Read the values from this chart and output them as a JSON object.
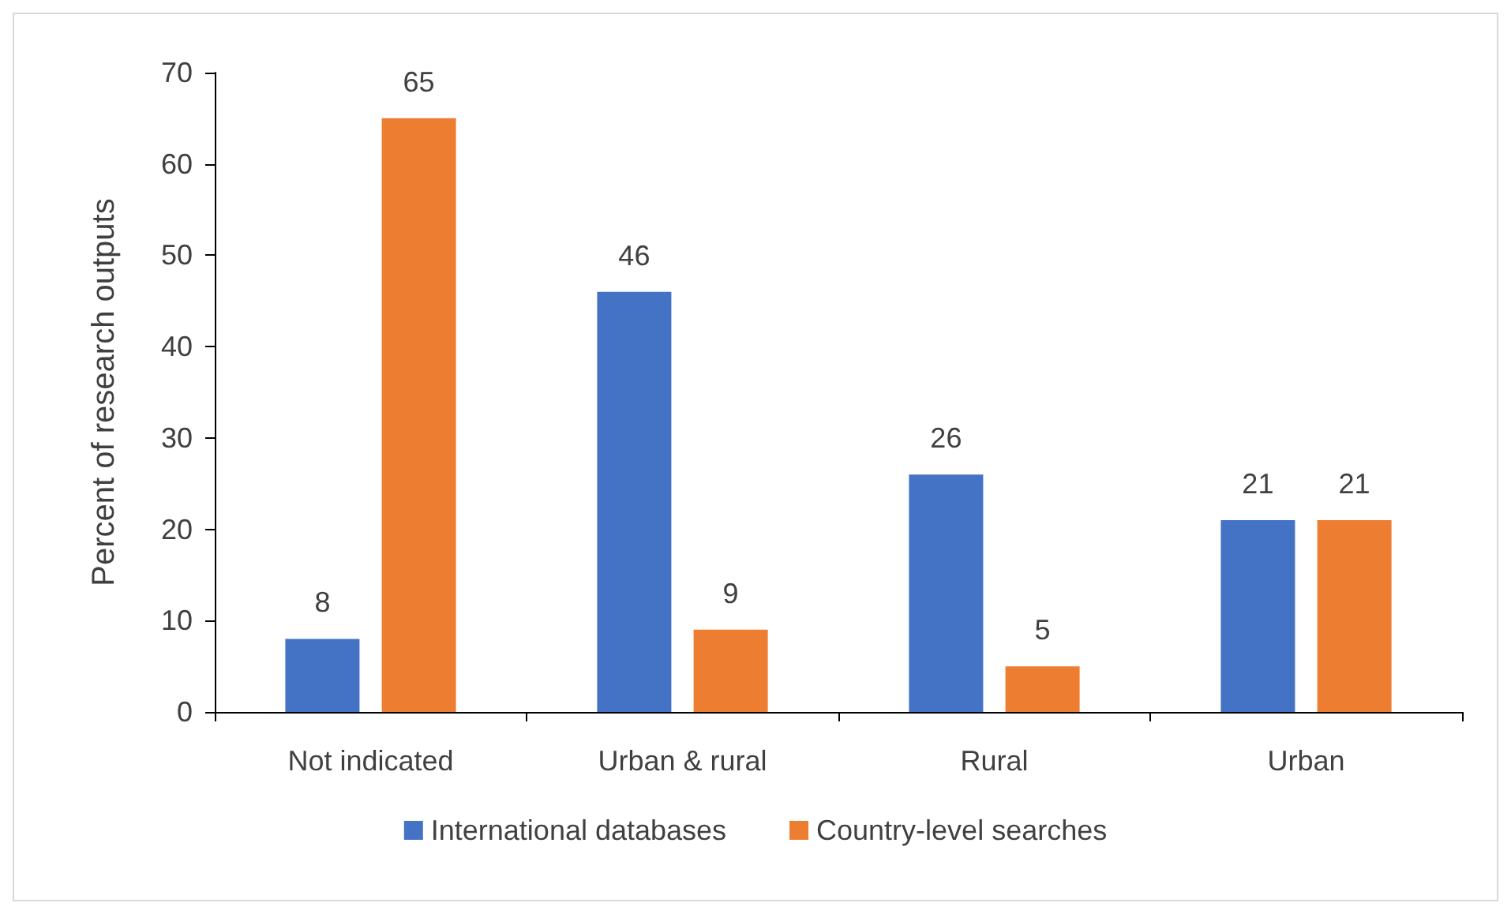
{
  "chart_data": {
    "type": "bar",
    "ylabel": "Percent of research outputs",
    "categories": [
      "Not indicated",
      "Urban & rural",
      "Rural",
      "Urban"
    ],
    "series": [
      {
        "name": "International databases",
        "color": "#4472c4",
        "values": [
          8,
          46,
          26,
          21
        ]
      },
      {
        "name": "Country-level searches",
        "color": "#ed7d31",
        "values": [
          65,
          9,
          5,
          21
        ]
      }
    ],
    "ylim": [
      0,
      70
    ],
    "yticks": [
      0,
      10,
      20,
      30,
      40,
      50,
      60,
      70
    ],
    "grid": false,
    "legend": "bottom",
    "data_labels": true
  }
}
